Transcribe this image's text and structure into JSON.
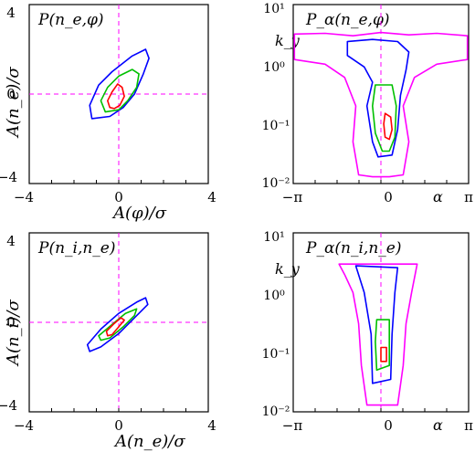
{
  "chart_data": [
    {
      "type": "contour",
      "title": "P(n_e,φ)",
      "xlabel": "A(φ)/σ",
      "ylabel": "A(n_e)/σ",
      "xlim": [
        -4,
        4
      ],
      "ylim": [
        -4,
        4
      ],
      "x_ticks": [
        "−4",
        "0",
        "4"
      ],
      "y_ticks": [
        "4",
        "0",
        "−4"
      ],
      "reference_lines": {
        "x": 0,
        "y": 0,
        "color": "#ff00ff",
        "style": "dashed"
      },
      "series": [
        {
          "color": "#0000ff",
          "points": [
            [
              -1.2,
              -1.1
            ],
            [
              -1.3,
              -0.5
            ],
            [
              -0.9,
              0.4
            ],
            [
              -0.3,
              1.0
            ],
            [
              0.6,
              1.7
            ],
            [
              1.2,
              2.0
            ],
            [
              1.35,
              1.6
            ],
            [
              1.1,
              0.9
            ],
            [
              0.7,
              0.0
            ],
            [
              0.2,
              -0.6
            ],
            [
              -0.4,
              -1.0
            ]
          ]
        },
        {
          "color": "#00c000",
          "points": [
            [
              -0.6,
              -0.8
            ],
            [
              -0.8,
              -0.3
            ],
            [
              -0.5,
              0.3
            ],
            [
              0.0,
              0.8
            ],
            [
              0.6,
              1.1
            ],
            [
              0.9,
              0.9
            ],
            [
              0.8,
              0.3
            ],
            [
              0.4,
              -0.3
            ],
            [
              0.0,
              -0.7
            ]
          ]
        },
        {
          "color": "#ff0000",
          "points": [
            [
              -0.4,
              -0.6
            ],
            [
              -0.5,
              -0.3
            ],
            [
              -0.3,
              0.1
            ],
            [
              -0.05,
              0.45
            ],
            [
              0.15,
              0.3
            ],
            [
              0.25,
              -0.1
            ],
            [
              0.05,
              -0.5
            ],
            [
              -0.2,
              -0.65
            ]
          ]
        }
      ]
    },
    {
      "type": "contour",
      "title": "P_α(n_e,φ)",
      "xlabel": "α",
      "ylabel": "k_y",
      "xlim": [
        -3.1416,
        3.1416
      ],
      "ylim": [
        0.01,
        10
      ],
      "yscale": "log",
      "x_ticks": [
        "−π",
        "0",
        "π"
      ],
      "y_ticks": [
        "10¹",
        "10⁰",
        "10⁻¹",
        "10⁻²"
      ],
      "reference_lines": {
        "x": 0,
        "color": "#ff00ff",
        "style": "dashed"
      },
      "series": [
        {
          "color": "#ff00ff",
          "points": [
            [
              -3.1,
              3.2
            ],
            [
              -2.0,
              3.3
            ],
            [
              -1.0,
              3.0
            ],
            [
              0.0,
              3.4
            ],
            [
              1.0,
              3.1
            ],
            [
              2.0,
              3.3
            ],
            [
              3.1,
              3.0
            ],
            [
              3.1,
              1.2
            ],
            [
              2.0,
              1.0
            ],
            [
              1.2,
              0.6
            ],
            [
              0.8,
              0.2
            ],
            [
              1.0,
              0.05
            ],
            [
              0.8,
              0.014
            ],
            [
              0.3,
              0.013
            ],
            [
              -0.3,
              0.013
            ],
            [
              -0.8,
              0.014
            ],
            [
              -1.0,
              0.05
            ],
            [
              -0.9,
              0.2
            ],
            [
              -1.3,
              0.6
            ],
            [
              -2.0,
              1.0
            ],
            [
              -3.1,
              1.2
            ]
          ]
        },
        {
          "color": "#0000ff",
          "points": [
            [
              -1.2,
              2.4
            ],
            [
              -0.3,
              2.6
            ],
            [
              0.6,
              2.4
            ],
            [
              1.0,
              1.6
            ],
            [
              0.9,
              0.8
            ],
            [
              0.7,
              0.3
            ],
            [
              0.6,
              0.08
            ],
            [
              0.4,
              0.03
            ],
            [
              -0.1,
              0.028
            ],
            [
              -0.3,
              0.05
            ],
            [
              -0.5,
              0.2
            ],
            [
              -0.3,
              0.5
            ],
            [
              -0.6,
              0.9
            ],
            [
              -1.2,
              1.4
            ]
          ]
        },
        {
          "color": "#00c000",
          "points": [
            [
              -0.2,
              0.45
            ],
            [
              0.4,
              0.45
            ],
            [
              0.55,
              0.2
            ],
            [
              0.5,
              0.06
            ],
            [
              0.3,
              0.035
            ],
            [
              0.05,
              0.035
            ],
            [
              -0.2,
              0.07
            ],
            [
              -0.3,
              0.2
            ]
          ]
        },
        {
          "color": "#ff0000",
          "points": [
            [
              0.15,
              0.15
            ],
            [
              0.35,
              0.13
            ],
            [
              0.4,
              0.08
            ],
            [
              0.3,
              0.055
            ],
            [
              0.15,
              0.06
            ],
            [
              0.1,
              0.1
            ]
          ]
        }
      ]
    },
    {
      "type": "contour",
      "title": "P(n_i,n_e)",
      "xlabel": "A(n_e)/σ",
      "ylabel": "A(n_i)/σ",
      "xlim": [
        -4,
        4
      ],
      "ylim": [
        -4,
        4
      ],
      "x_ticks": [
        "−4",
        "0",
        "4"
      ],
      "y_ticks": [
        "4",
        "0",
        "−4"
      ],
      "reference_lines": {
        "x": 0,
        "y": 0,
        "color": "#ff00ff",
        "style": "dashed"
      },
      "series": [
        {
          "color": "#0000ff",
          "points": [
            [
              -1.3,
              -1.3
            ],
            [
              -1.4,
              -1.0
            ],
            [
              -0.8,
              -0.3
            ],
            [
              0.0,
              0.4
            ],
            [
              0.8,
              0.9
            ],
            [
              1.2,
              1.1
            ],
            [
              1.3,
              0.8
            ],
            [
              0.7,
              0.2
            ],
            [
              0.0,
              -0.5
            ],
            [
              -0.8,
              -1.1
            ]
          ]
        },
        {
          "color": "#00c000",
          "points": [
            [
              -0.8,
              -0.8
            ],
            [
              -0.9,
              -0.6
            ],
            [
              -0.3,
              -0.1
            ],
            [
              0.3,
              0.4
            ],
            [
              0.8,
              0.6
            ],
            [
              0.7,
              0.3
            ],
            [
              0.2,
              -0.2
            ],
            [
              -0.4,
              -0.7
            ]
          ]
        },
        {
          "color": "#ff0000",
          "points": [
            [
              -0.5,
              -0.6
            ],
            [
              -0.55,
              -0.4
            ],
            [
              -0.2,
              -0.05
            ],
            [
              0.1,
              0.2
            ],
            [
              0.25,
              0.1
            ],
            [
              0.0,
              -0.2
            ],
            [
              -0.3,
              -0.55
            ]
          ]
        }
      ]
    },
    {
      "type": "contour",
      "title": "P_α(n_i,n_e)",
      "xlabel": "α",
      "ylabel": "k_y",
      "xlim": [
        -3.1416,
        3.1416
      ],
      "ylim": [
        0.01,
        10
      ],
      "yscale": "log",
      "x_ticks": [
        "−π",
        "0",
        "π"
      ],
      "y_ticks": [
        "10¹",
        "10⁰",
        "10⁻¹",
        "10⁻²"
      ],
      "reference_lines": {
        "x": 0,
        "color": "#ff00ff",
        "style": "dashed"
      },
      "series": [
        {
          "color": "#ff00ff",
          "points": [
            [
              -1.5,
              3.0
            ],
            [
              1.3,
              3.0
            ],
            [
              1.1,
              1.0
            ],
            [
              0.9,
              0.3
            ],
            [
              0.8,
              0.06
            ],
            [
              0.6,
              0.013
            ],
            [
              -0.5,
              0.013
            ],
            [
              -0.7,
              0.06
            ],
            [
              -0.8,
              0.3
            ],
            [
              -1.0,
              1.0
            ],
            [
              -1.3,
              2.0
            ]
          ]
        },
        {
          "color": "#0000ff",
          "points": [
            [
              -0.9,
              2.8
            ],
            [
              0.6,
              2.6
            ],
            [
              0.5,
              1.0
            ],
            [
              0.4,
              0.2
            ],
            [
              0.35,
              0.035
            ],
            [
              -0.3,
              0.03
            ],
            [
              -0.35,
              0.2
            ],
            [
              -0.6,
              1.0
            ]
          ]
        },
        {
          "color": "#00c000",
          "points": [
            [
              -0.15,
              0.35
            ],
            [
              0.3,
              0.35
            ],
            [
              0.3,
              0.06
            ],
            [
              -0.15,
              0.05
            ],
            [
              -0.2,
              0.15
            ]
          ]
        },
        {
          "color": "#ff0000",
          "points": [
            [
              0.0,
              0.12
            ],
            [
              0.2,
              0.12
            ],
            [
              0.2,
              0.07
            ],
            [
              0.0,
              0.07
            ]
          ]
        }
      ]
    }
  ]
}
